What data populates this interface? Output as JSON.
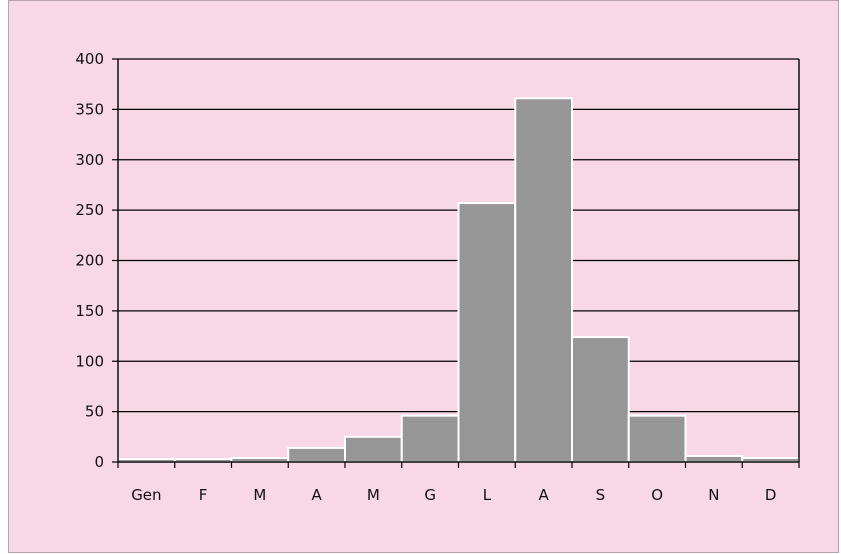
{
  "chart_data": {
    "type": "bar",
    "categories": [
      "Gen",
      "F",
      "M",
      "A",
      "M",
      "G",
      "L",
      "A",
      "S",
      "O",
      "N",
      "D"
    ],
    "values": [
      3,
      3,
      4,
      14,
      25,
      46,
      257,
      361,
      124,
      46,
      6,
      4
    ],
    "ylim": [
      0,
      400
    ],
    "yticks": [
      0,
      50,
      100,
      150,
      200,
      250,
      300,
      350,
      400
    ],
    "grid": true,
    "title": "",
    "xlabel": "",
    "ylabel": ""
  },
  "colors": {
    "background": "#f8d7e6",
    "bar": "#969696",
    "bar_edge": "#ffffff",
    "grid": "#000000",
    "axis": "#000000"
  }
}
